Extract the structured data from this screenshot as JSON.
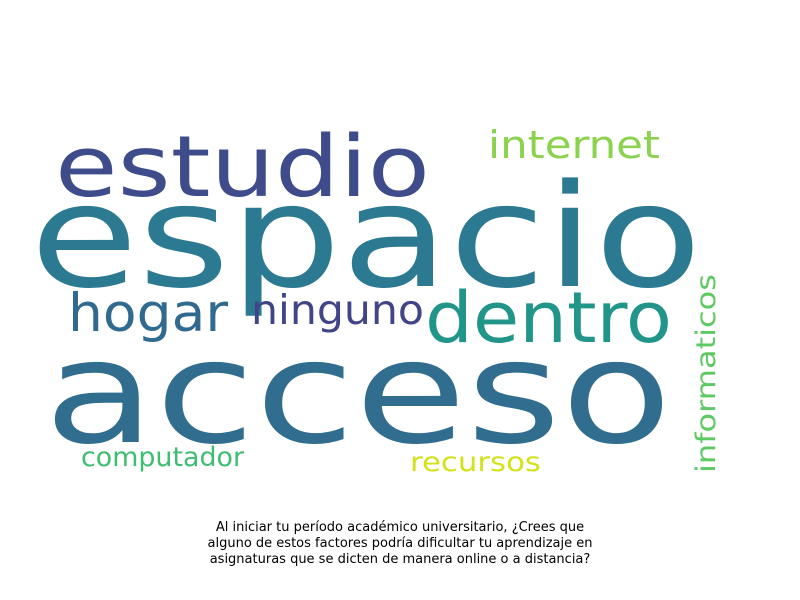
{
  "words": [
    {
      "text": "espacio",
      "color": "#2c7a92"
    },
    {
      "text": "acceso",
      "color": "#316d8f"
    },
    {
      "text": "estudio",
      "color": "#3f4c8c"
    },
    {
      "text": "internet",
      "color": "#8bd24e"
    },
    {
      "text": "dentro",
      "color": "#21958a"
    },
    {
      "text": "hogar",
      "color": "#306a8e"
    },
    {
      "text": "ninguno",
      "color": "#414487"
    },
    {
      "text": "informaticos",
      "color": "#5ec962"
    },
    {
      "text": "computador",
      "color": "#40bd72"
    },
    {
      "text": "recursos",
      "color": "#d2e21b"
    }
  ],
  "caption": {
    "line1": "Al iniciar tu período académico universitario, ¿Crees que",
    "line2": "alguno de estos factores podría dificultar tu aprendizaje en",
    "line3": "asignaturas que se dicten de manera online o a distancia?"
  }
}
